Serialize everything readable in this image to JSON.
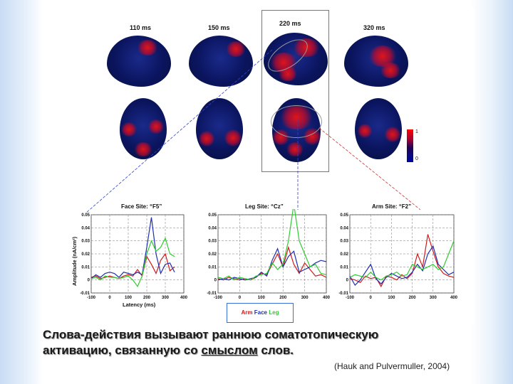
{
  "time_labels": [
    "110 ms",
    "150 ms",
    "220 ms",
    "320 ms"
  ],
  "scale_labels": {
    "max": "1",
    "min": "0"
  },
  "panels": [
    {
      "title": "Face Site: “F5”",
      "yticks": [
        "0.05",
        "0.04",
        "0.03",
        "0.02",
        "0.01",
        "0",
        "-0.01"
      ],
      "xticks": [
        "-100",
        "0",
        "100",
        "200",
        "300",
        "400"
      ]
    },
    {
      "title": "Leg Site: “Cz”",
      "yticks": [
        "0.05",
        "0.04",
        "0.03",
        "0.02",
        "0.01",
        "0",
        "-0.01"
      ],
      "xticks": [
        "-100",
        "0",
        "100",
        "200",
        "300",
        "400"
      ]
    },
    {
      "title": "Arm Site: “F2”",
      "yticks": [
        "0.05",
        "0.04",
        "0.03",
        "0.02",
        "0.01",
        "0",
        "-0.01"
      ],
      "xticks": [
        "-100",
        "0",
        "100",
        "200",
        "300",
        "400"
      ]
    }
  ],
  "y_axis_label": "Amplitude (nA/cm²)",
  "x_axis_label": "Latency (ms)",
  "legend": {
    "arm": "Arm",
    "face": "Face",
    "leg": "Leg"
  },
  "colors": {
    "arm": "#d11a1a",
    "face": "#1f2fb0",
    "leg": "#2ecc2e"
  },
  "caption": {
    "line1": "Слова-действия вызывают раннюю соматотопическую",
    "line2_pre": "активацию, связанную со ",
    "line2_u": "смыслом",
    "line2_post": " слов."
  },
  "citation": "(Hauk and Pulvermuller, 2004)",
  "chart_data": [
    {
      "type": "line",
      "title": "Face Site: “F5”",
      "xlabel": "Latency (ms)",
      "ylabel": "Amplitude (nA/cm²)",
      "xlim": [
        -100,
        400
      ],
      "ylim": [
        -0.01,
        0.05
      ],
      "x": [
        -100,
        -75,
        -50,
        -25,
        0,
        25,
        50,
        75,
        100,
        125,
        150,
        175,
        200,
        225,
        250,
        275,
        300,
        325,
        350
      ],
      "series": [
        {
          "name": "Arm",
          "values": [
            0.002,
            0.003,
            0.001,
            0.002,
            0.003,
            0.002,
            0.001,
            0.003,
            0.004,
            0.003,
            0.008,
            0.003,
            0.018,
            0.012,
            0.005,
            0.015,
            0.02,
            0.007,
            0.01
          ]
        },
        {
          "name": "Face",
          "values": [
            0.001,
            0.004,
            0.002,
            0.005,
            0.006,
            0.005,
            0.002,
            0.006,
            0.005,
            0.004,
            0.006,
            0.004,
            0.025,
            0.048,
            0.02,
            0.005,
            0.012,
            0.013,
            0.006
          ]
        },
        {
          "name": "Leg",
          "values": [
            0.001,
            0.002,
            0.0,
            0.003,
            0.002,
            0.002,
            0.001,
            0.002,
            0.003,
            0.0,
            -0.005,
            0.003,
            0.02,
            0.03,
            0.022,
            0.025,
            0.032,
            0.02,
            0.018
          ]
        }
      ]
    },
    {
      "type": "line",
      "title": "Leg Site: “Cz”",
      "xlabel": "Latency (ms)",
      "ylabel": "",
      "xlim": [
        -100,
        400
      ],
      "ylim": [
        -0.01,
        0.05
      ],
      "x": [
        -100,
        -75,
        -50,
        -25,
        0,
        25,
        50,
        75,
        100,
        125,
        150,
        175,
        200,
        225,
        250,
        275,
        300,
        325,
        350,
        375,
        400
      ],
      "series": [
        {
          "name": "Arm",
          "values": [
            0.001,
            0.0,
            0.002,
            0.001,
            0.0,
            0.001,
            0.0,
            0.002,
            0.005,
            0.004,
            0.012,
            0.02,
            0.01,
            0.025,
            0.012,
            0.005,
            0.013,
            0.008,
            0.003,
            0.004,
            0.002
          ]
        },
        {
          "name": "Face",
          "values": [
            0.0,
            0.001,
            0.0,
            0.002,
            0.001,
            0.0,
            0.001,
            0.002,
            0.006,
            0.003,
            0.015,
            0.024,
            0.01,
            0.018,
            0.022,
            0.006,
            0.008,
            0.01,
            0.013,
            0.015,
            0.014
          ]
        },
        {
          "name": "Leg",
          "values": [
            0.002,
            0.001,
            0.003,
            0.0,
            0.002,
            0.001,
            0.0,
            0.003,
            0.004,
            0.005,
            0.013,
            0.008,
            0.012,
            0.03,
            0.058,
            0.03,
            0.02,
            0.01,
            0.012,
            0.005,
            0.004
          ]
        }
      ]
    },
    {
      "type": "line",
      "title": "Arm Site: “F2”",
      "xlabel": "Latency (ms)",
      "ylabel": "",
      "xlim": [
        -100,
        400
      ],
      "ylim": [
        -0.01,
        0.05
      ],
      "x": [
        -100,
        -75,
        -50,
        -25,
        0,
        25,
        50,
        75,
        100,
        125,
        150,
        175,
        200,
        225,
        250,
        275,
        300,
        325,
        350,
        375,
        400
      ],
      "series": [
        {
          "name": "Arm",
          "values": [
            0.001,
            0.0,
            -0.002,
            0.003,
            0.001,
            0.002,
            -0.005,
            0.003,
            0.002,
            0.0,
            0.004,
            0.001,
            0.005,
            0.02,
            0.01,
            0.035,
            0.022,
            0.01,
            0.005,
            0.003,
            0.002
          ]
        },
        {
          "name": "Face",
          "values": [
            0.003,
            -0.004,
            0.0,
            0.006,
            0.012,
            0.001,
            -0.003,
            0.002,
            0.005,
            0.003,
            0.001,
            0.002,
            0.006,
            0.012,
            0.007,
            0.02,
            0.026,
            0.012,
            0.008,
            0.004,
            0.006
          ]
        },
        {
          "name": "Leg",
          "values": [
            0.002,
            0.004,
            0.003,
            0.002,
            0.006,
            0.002,
            0.0,
            0.003,
            0.004,
            0.006,
            0.003,
            0.004,
            0.012,
            0.01,
            0.008,
            0.01,
            0.012,
            0.008,
            0.01,
            0.02,
            0.03
          ]
        }
      ]
    }
  ]
}
